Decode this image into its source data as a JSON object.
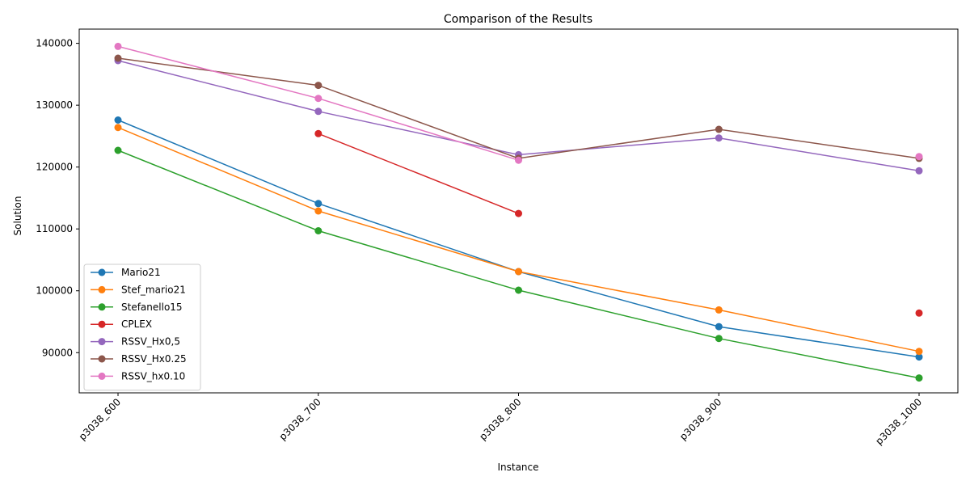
{
  "chart_data": {
    "type": "line",
    "title": "Comparison of the Results",
    "xlabel": "Instance",
    "ylabel": "Solution",
    "categories": [
      "p3038_600",
      "p3038_700",
      "p3038_800",
      "p3038_900",
      "p3038_1000"
    ],
    "ylim": [
      83500,
      142300
    ],
    "yticks": [
      90000,
      100000,
      110000,
      120000,
      130000,
      140000
    ],
    "ytick_labels": [
      "90000",
      "100000",
      "110000",
      "120000",
      "130000",
      "140000"
    ],
    "grid": false,
    "legend_position": "lower-left",
    "series": [
      {
        "name": "Mario21",
        "color": "#1f77b4",
        "values": [
          127600,
          114100,
          103100,
          94200,
          89300
        ]
      },
      {
        "name": "Stef_mario21",
        "color": "#ff7f0e",
        "values": [
          126400,
          112900,
          103100,
          96900,
          90200
        ]
      },
      {
        "name": "Stefanello15",
        "color": "#2ca02c",
        "values": [
          122700,
          109700,
          100100,
          92300,
          85900
        ]
      },
      {
        "name": "CPLEX",
        "color": "#d62728",
        "values": [
          null,
          125400,
          112500,
          null,
          96400
        ]
      },
      {
        "name": "RSSV_Hx0,5",
        "color": "#9467bd",
        "values": [
          137200,
          129000,
          122000,
          124700,
          119400
        ]
      },
      {
        "name": "RSSV_Hx0.25",
        "color": "#8c564b",
        "values": [
          137600,
          133200,
          121400,
          126100,
          121400
        ]
      },
      {
        "name": "RSSV_hx0.10",
        "color": "#e377c2",
        "values": [
          139500,
          131100,
          121100,
          null,
          121700
        ]
      }
    ]
  }
}
